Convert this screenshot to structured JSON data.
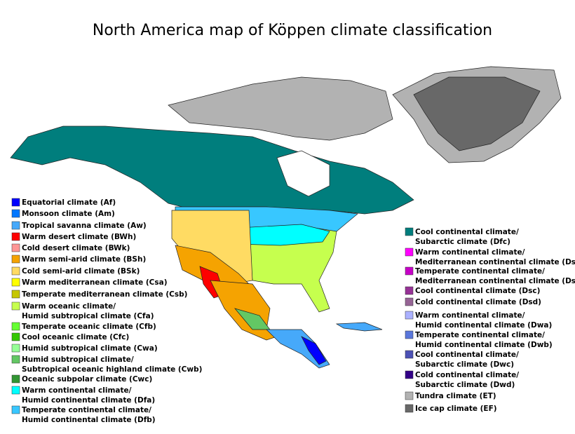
{
  "title": "North America map of Köppen climate classification",
  "legend_left": [
    {
      "lines": [
        "Equatorial climate (Af)"
      ],
      "color": "#0000fe"
    },
    {
      "lines": [
        "Monsoon climate (Am)"
      ],
      "color": "#0077ff"
    },
    {
      "lines": [
        "Tropical savanna climate (Aw)"
      ],
      "color": "#46a9fa"
    },
    {
      "lines": [
        "Warm desert climate (BWh)"
      ],
      "color": "#fe0000"
    },
    {
      "lines": [
        "Cold desert climate (BWk)"
      ],
      "color": "#fe9695"
    },
    {
      "lines": [
        "Warm semi-arid climate (BSh)"
      ],
      "color": "#f5a301"
    },
    {
      "lines": [
        "Cold semi-arid climate (BSk)"
      ],
      "color": "#ffdb63"
    },
    {
      "lines": [
        "Warm mediterranean climate (Csa)"
      ],
      "color": "#ffff00"
    },
    {
      "lines": [
        "Temperate mediterranean climate (Csb)"
      ],
      "color": "#c6c700"
    },
    {
      "lines": [
        "Warm oceanic climate/",
        "Humid subtropical climate (Cfa)"
      ],
      "color": "#c6ff4e"
    },
    {
      "lines": [
        "Temperate oceanic climate (Cfb)"
      ],
      "color": "#66ff33"
    },
    {
      "lines": [
        "Cool oceanic climate (Cfc)"
      ],
      "color": "#33c701"
    },
    {
      "lines": [
        "Humid subtropical climate (Cwa)"
      ],
      "color": "#96ff96"
    },
    {
      "lines": [
        "Humid subtropical climate/",
        "Subtropical oceanic highland climate (Cwb)"
      ],
      "color": "#63c764"
    },
    {
      "lines": [
        "Oceanic subpolar climate (Cwc)"
      ],
      "color": "#329633"
    },
    {
      "lines": [
        "Warm continental climate/",
        "Humid continental climate (Dfa)"
      ],
      "color": "#00ffff"
    },
    {
      "lines": [
        "Temperate continental climate/",
        "Humid continental climate (Dfb)"
      ],
      "color": "#38c7ff"
    }
  ],
  "legend_right": [
    {
      "lines": [
        "Cool continental climate/",
        "Subarctic climate (Dfc)"
      ],
      "color": "#007e7d"
    },
    {
      "lines": [
        "Warm continental climate/",
        "Mediterranean continental climate (Dsa)"
      ],
      "color": "#ff00fe"
    },
    {
      "lines": [
        "Temperate continental climate/",
        "Mediterranean continental climate (Dsb)"
      ],
      "color": "#c600c7"
    },
    {
      "lines": [
        "Cool continental climate (Dsc)"
      ],
      "color": "#963296"
    },
    {
      "lines": [
        "Cold continental climate (Dsd)"
      ],
      "color": "#966495"
    },
    {
      "lines": [
        "Warm continental climate/",
        "Humid continental climate (Dwa)"
      ],
      "color": "#abb1ff"
    },
    {
      "lines": [
        "Temperate continental climate/",
        "Humid continental climate (Dwb)"
      ],
      "color": "#5a77db"
    },
    {
      "lines": [
        "Cool continental climate/",
        "Subarctic climate (Dwc)"
      ],
      "color": "#4c51b5"
    },
    {
      "lines": [
        "Cold continental climate/",
        "Subarctic climate (Dwd)"
      ],
      "color": "#320087"
    },
    {
      "lines": [
        "Tundra climate (ET)"
      ],
      "color": "#b2b2b2"
    },
    {
      "lines": [
        "Ice cap climate (EF)"
      ],
      "color": "#686868"
    }
  ]
}
